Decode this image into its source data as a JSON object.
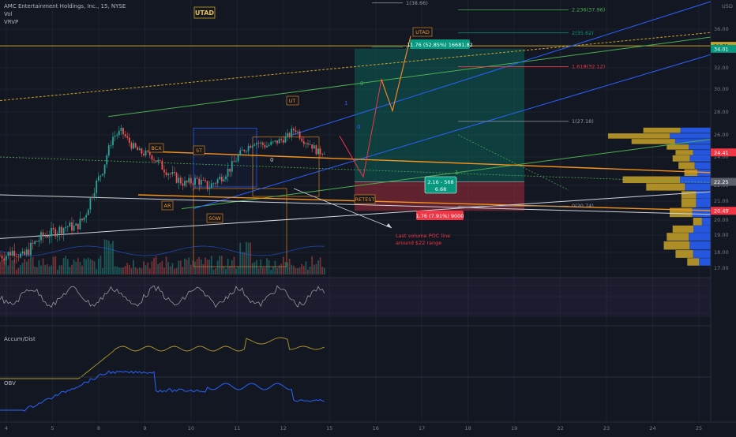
{
  "header": {
    "symbol": "AMC Entertainment Holdings, Inc., 15, NYSE",
    "vol": "Vol",
    "vrvp": "VRVP"
  },
  "colors": {
    "background": "#131722",
    "up": "#26a69a",
    "down": "#ef5350",
    "gold": "#c9a227",
    "orange": "#f7931a",
    "green_line": "#4caf50",
    "blue_line": "#2962ff",
    "white_line": "#d1d4dc",
    "rsi": "#9598a1",
    "accum": "#b39b2e",
    "obv": "#2962ff"
  },
  "price_axis": {
    "currency": "USD",
    "ticks": [
      "36.00",
      "34.00",
      "32.00",
      "30.00",
      "28.00",
      "26.00",
      "24.00",
      "22.00",
      "21.00",
      "20.00",
      "19.00",
      "18.00",
      "17.00"
    ],
    "badges": [
      {
        "label": "34.31",
        "value": 34.31,
        "color": "#c9a227",
        "text_color": "#131722"
      },
      {
        "label": "34.01",
        "value": 34.01,
        "color": "#089981",
        "text_color": "#ffffff"
      },
      {
        "label": "24.41",
        "value": 24.41,
        "color": "#f23645",
        "text_color": "#ffffff"
      },
      {
        "label": "22.25",
        "value": 22.25,
        "color": "#5d606b",
        "text_color": "#ffffff"
      },
      {
        "label": "20.49",
        "value": 20.49,
        "color": "#f23645",
        "text_color": "#ffffff"
      }
    ]
  },
  "date_axis": {
    "labels": [
      "4",
      "5",
      "8",
      "9",
      "10",
      "11",
      "12",
      "15",
      "16",
      "17",
      "18",
      "19",
      "22",
      "23",
      "24",
      "25"
    ]
  },
  "annotations": {
    "utad_top": "UTAD",
    "utad_mid": "UTAD",
    "ut": "UT",
    "bcx": "BCX",
    "st": "ST",
    "ar": "AR",
    "sow": "SOW",
    "retest": "RETEST",
    "zero_a": "0",
    "zero_b": "0",
    "zero_c": "0",
    "one_a": "1",
    "one_b": "1",
    "note_line1": "Last volume POC line",
    "note_line2": "around $22 range"
  },
  "fib_levels": [
    {
      "label": "2.236(37.96)",
      "value": 37.96,
      "color": "#4caf50"
    },
    {
      "label": "2(35.62)",
      "value": 35.62,
      "color": "#089981"
    },
    {
      "label": "1.618(32.12)",
      "value": 32.12,
      "color": "#f23645"
    },
    {
      "label": "1(27.18)",
      "value": 27.18,
      "color": "#9598a1"
    },
    {
      "label": "0.618(34.18)",
      "value": 34.18,
      "color": "#089981"
    },
    {
      "label": "1(38.66)",
      "value": 38.66,
      "color": "#9598a1"
    },
    {
      "label": "0(20.74)",
      "value": 20.74,
      "color": "#9598a1"
    }
  ],
  "position_tool": {
    "target_label": "11.76 (52.85%) 16681.82",
    "entry_label_1": "2.16 - 568",
    "entry_label_2": "6.68",
    "stop_label": "1.76 (7.91%) 9000",
    "entry": 22.25,
    "target": 34.01,
    "stop": 20.49
  },
  "rsi": {
    "ticks": [
      "75.00",
      "50.00",
      "25.00"
    ]
  },
  "accum_dist": {
    "title": "Accum/Dist",
    "ticks": [
      "8.5M",
      "8M",
      "7.5M"
    ]
  },
  "obv": {
    "title": "OBV",
    "ticks": [
      "35M"
    ]
  },
  "chart_data": {
    "type": "candlestick",
    "title": "AMC Entertainment Holdings, Inc., 15, NYSE",
    "x_dates": [
      "4",
      "5",
      "8",
      "9",
      "10",
      "11",
      "12",
      "15",
      "16",
      "17",
      "18",
      "19",
      "22",
      "23",
      "24",
      "25"
    ],
    "ylim": [
      17.0,
      38.0
    ],
    "price_path": [
      {
        "date": "4",
        "price": 17.8
      },
      {
        "date": "4",
        "price": 18.1
      },
      {
        "date": "4",
        "price": 17.7
      },
      {
        "date": "4",
        "price": 18.4
      },
      {
        "date": "4",
        "price": 18.9
      },
      {
        "date": "5",
        "price": 19.3
      },
      {
        "date": "5",
        "price": 19.6
      },
      {
        "date": "5",
        "price": 19.5
      },
      {
        "date": "5",
        "price": 20.2
      },
      {
        "date": "5",
        "price": 21.8
      },
      {
        "date": "8",
        "price": 23.2
      },
      {
        "date": "8",
        "price": 25.8
      },
      {
        "date": "8",
        "price": 26.3
      },
      {
        "date": "8",
        "price": 25.1
      },
      {
        "date": "8",
        "price": 24.4
      },
      {
        "date": "9",
        "price": 24.2
      },
      {
        "date": "9",
        "price": 23.3
      },
      {
        "date": "9",
        "price": 22.6
      },
      {
        "date": "9",
        "price": 22.1
      },
      {
        "date": "10",
        "price": 22.4
      },
      {
        "date": "10",
        "price": 21.9
      },
      {
        "date": "10",
        "price": 22.5
      },
      {
        "date": "10",
        "price": 23.3
      },
      {
        "date": "11",
        "price": 24.6
      },
      {
        "date": "11",
        "price": 25.4
      },
      {
        "date": "11",
        "price": 25.0
      },
      {
        "date": "11",
        "price": 25.4
      },
      {
        "date": "12",
        "price": 25.8
      },
      {
        "date": "12",
        "price": 26.6
      },
      {
        "date": "12",
        "price": 25.6
      },
      {
        "date": "12",
        "price": 25.2
      },
      {
        "date": "12",
        "price": 24.4
      },
      {
        "date": "12",
        "price": 24.6
      }
    ],
    "projection": [
      22.6,
      30.9,
      28.1,
      35.3
    ],
    "volume_profile": [
      {
        "price": 26.4,
        "total": 2.3,
        "buy_share": 0.45
      },
      {
        "price": 25.9,
        "total": 3.5,
        "buy_share": 0.4
      },
      {
        "price": 25.4,
        "total": 2.7,
        "buy_share": 0.45
      },
      {
        "price": 24.9,
        "total": 1.5,
        "buy_share": 0.5
      },
      {
        "price": 24.4,
        "total": 1.2,
        "buy_share": 0.5
      },
      {
        "price": 23.9,
        "total": 1.3,
        "buy_share": 0.55
      },
      {
        "price": 23.4,
        "total": 1.1,
        "buy_share": 0.5
      },
      {
        "price": 22.9,
        "total": 0.9,
        "buy_share": 0.5
      },
      {
        "price": 22.4,
        "total": 3.0,
        "buy_share": 0.35
      },
      {
        "price": 21.9,
        "total": 2.2,
        "buy_share": 0.4
      },
      {
        "price": 21.4,
        "total": 1.0,
        "buy_share": 0.5
      },
      {
        "price": 20.9,
        "total": 1.0,
        "buy_share": 0.5
      },
      {
        "price": 20.4,
        "total": 1.4,
        "buy_share": 0.45
      },
      {
        "price": 19.9,
        "total": 0.6,
        "buy_share": 0.5
      },
      {
        "price": 19.4,
        "total": 1.3,
        "buy_share": 0.45
      },
      {
        "price": 18.9,
        "total": 1.5,
        "buy_share": 0.5
      },
      {
        "price": 18.4,
        "total": 1.6,
        "buy_share": 0.45
      },
      {
        "price": 17.9,
        "total": 1.2,
        "buy_share": 0.5
      },
      {
        "price": 17.4,
        "total": 0.8,
        "buy_share": 0.5
      }
    ]
  }
}
